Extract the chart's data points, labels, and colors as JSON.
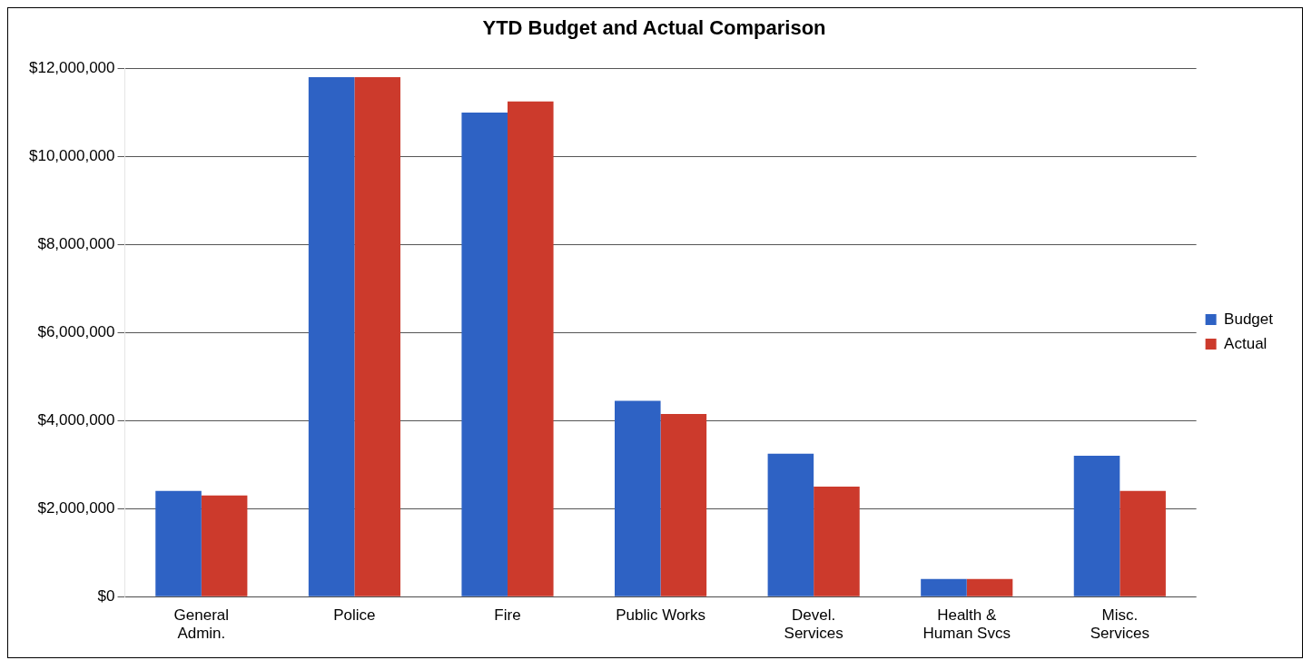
{
  "chart_data": {
    "type": "bar",
    "title": "YTD Budget and Actual Comparison",
    "categories": [
      "General Admin.",
      "Police",
      "Fire",
      "Public Works",
      "Devel. Services",
      "Health & Human Svcs",
      "Misc. Services"
    ],
    "series": [
      {
        "name": "Budget",
        "color": "#2e62c4",
        "values": [
          2400000,
          11800000,
          11000000,
          4450000,
          3250000,
          400000,
          3200000
        ]
      },
      {
        "name": "Actual",
        "color": "#cc3a2c",
        "values": [
          2300000,
          11800000,
          11250000,
          4150000,
          2500000,
          400000,
          2400000
        ]
      }
    ],
    "ylim": [
      0,
      12000000
    ],
    "yticks": [
      {
        "value": 0,
        "label": "$0"
      },
      {
        "value": 2000000,
        "label": "$2,000,000"
      },
      {
        "value": 4000000,
        "label": "$4,000,000"
      },
      {
        "value": 6000000,
        "label": "$6,000,000"
      },
      {
        "value": 8000000,
        "label": "$8,000,000"
      },
      {
        "value": 10000000,
        "label": "$10,000,000"
      },
      {
        "value": 12000000,
        "label": "$12,000,000"
      }
    ],
    "grid": "y",
    "legend": "right"
  }
}
